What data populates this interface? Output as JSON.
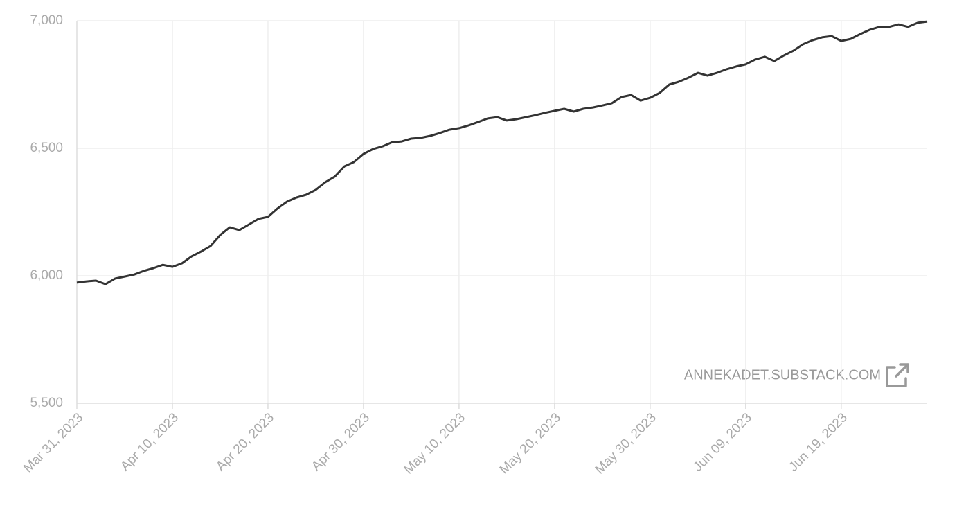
{
  "chart_data": {
    "type": "line",
    "x": [
      "2023-03-31",
      "2023-04-01",
      "2023-04-02",
      "2023-04-03",
      "2023-04-04",
      "2023-04-05",
      "2023-04-06",
      "2023-04-07",
      "2023-04-08",
      "2023-04-09",
      "2023-04-10",
      "2023-04-11",
      "2023-04-12",
      "2023-04-13",
      "2023-04-14",
      "2023-04-15",
      "2023-04-16",
      "2023-04-17",
      "2023-04-18",
      "2023-04-19",
      "2023-04-20",
      "2023-04-21",
      "2023-04-22",
      "2023-04-23",
      "2023-04-24",
      "2023-04-25",
      "2023-04-26",
      "2023-04-27",
      "2023-04-28",
      "2023-04-29",
      "2023-04-30",
      "2023-05-01",
      "2023-05-02",
      "2023-05-03",
      "2023-05-04",
      "2023-05-05",
      "2023-05-06",
      "2023-05-07",
      "2023-05-08",
      "2023-05-09",
      "2023-05-10",
      "2023-05-11",
      "2023-05-12",
      "2023-05-13",
      "2023-05-14",
      "2023-05-15",
      "2023-05-16",
      "2023-05-17",
      "2023-05-18",
      "2023-05-19",
      "2023-05-20",
      "2023-05-21",
      "2023-05-22",
      "2023-05-23",
      "2023-05-24",
      "2023-05-25",
      "2023-05-26",
      "2023-05-27",
      "2023-05-28",
      "2023-05-29",
      "2023-05-30",
      "2023-05-31",
      "2023-06-01",
      "2023-06-02",
      "2023-06-03",
      "2023-06-04",
      "2023-06-05",
      "2023-06-06",
      "2023-06-07",
      "2023-06-08",
      "2023-06-09",
      "2023-06-10",
      "2023-06-11",
      "2023-06-12",
      "2023-06-13",
      "2023-06-14",
      "2023-06-15",
      "2023-06-16",
      "2023-06-17",
      "2023-06-18",
      "2023-06-19",
      "2023-06-20",
      "2023-06-21",
      "2023-06-22",
      "2023-06-23",
      "2023-06-24",
      "2023-06-25",
      "2023-06-26",
      "2023-06-27",
      "2023-06-28"
    ],
    "series": [
      {
        "color": "#333333",
        "values": [
          5973,
          5978,
          5981,
          5967,
          5989,
          5997,
          6005,
          6019,
          6030,
          6043,
          6035,
          6049,
          6076,
          6095,
          6117,
          6160,
          6190,
          6179,
          6201,
          6223,
          6231,
          6264,
          6291,
          6307,
          6318,
          6337,
          6367,
          6389,
          6429,
          6446,
          6478,
          6497,
          6508,
          6524,
          6527,
          6538,
          6541,
          6549,
          6560,
          6573,
          6579,
          6590,
          6603,
          6617,
          6622,
          6609,
          6614,
          6622,
          6630,
          6639,
          6647,
          6655,
          6644,
          6655,
          6660,
          6668,
          6677,
          6701,
          6709,
          6687,
          6698,
          6717,
          6750,
          6761,
          6777,
          6796,
          6785,
          6796,
          6810,
          6821,
          6829,
          6848,
          6859,
          6842,
          6864,
          6883,
          6908,
          6924,
          6935,
          6940,
          6921,
          6929,
          6948,
          6965,
          6976,
          6976,
          6986,
          6976,
          6992,
          6997
        ]
      }
    ],
    "xlim": [
      "2023-03-31",
      "2023-06-28"
    ],
    "xticks": [
      {
        "value": "2023-03-31",
        "label": "Mar 31, 2023"
      },
      {
        "value": "2023-04-10",
        "label": "Apr 10, 2023"
      },
      {
        "value": "2023-04-20",
        "label": "Apr 20, 2023"
      },
      {
        "value": "2023-04-30",
        "label": "Apr 30, 2023"
      },
      {
        "value": "2023-05-10",
        "label": "May 10, 2023"
      },
      {
        "value": "2023-05-20",
        "label": "May 20, 2023"
      },
      {
        "value": "2023-05-30",
        "label": "May 30, 2023"
      },
      {
        "value": "2023-06-09",
        "label": "Jun 09, 2023"
      },
      {
        "value": "2023-06-19",
        "label": "Jun 19, 2023"
      }
    ],
    "ylim": [
      5500,
      7000
    ],
    "yticks": [
      {
        "value": 5500,
        "label": "5,500"
      },
      {
        "value": 6000,
        "label": "6,000"
      },
      {
        "value": 6500,
        "label": "6,500"
      },
      {
        "value": 7000,
        "label": "7,000"
      }
    ],
    "grid": true,
    "watermark": "ANNEKADET.SUBSTACK.COM"
  }
}
